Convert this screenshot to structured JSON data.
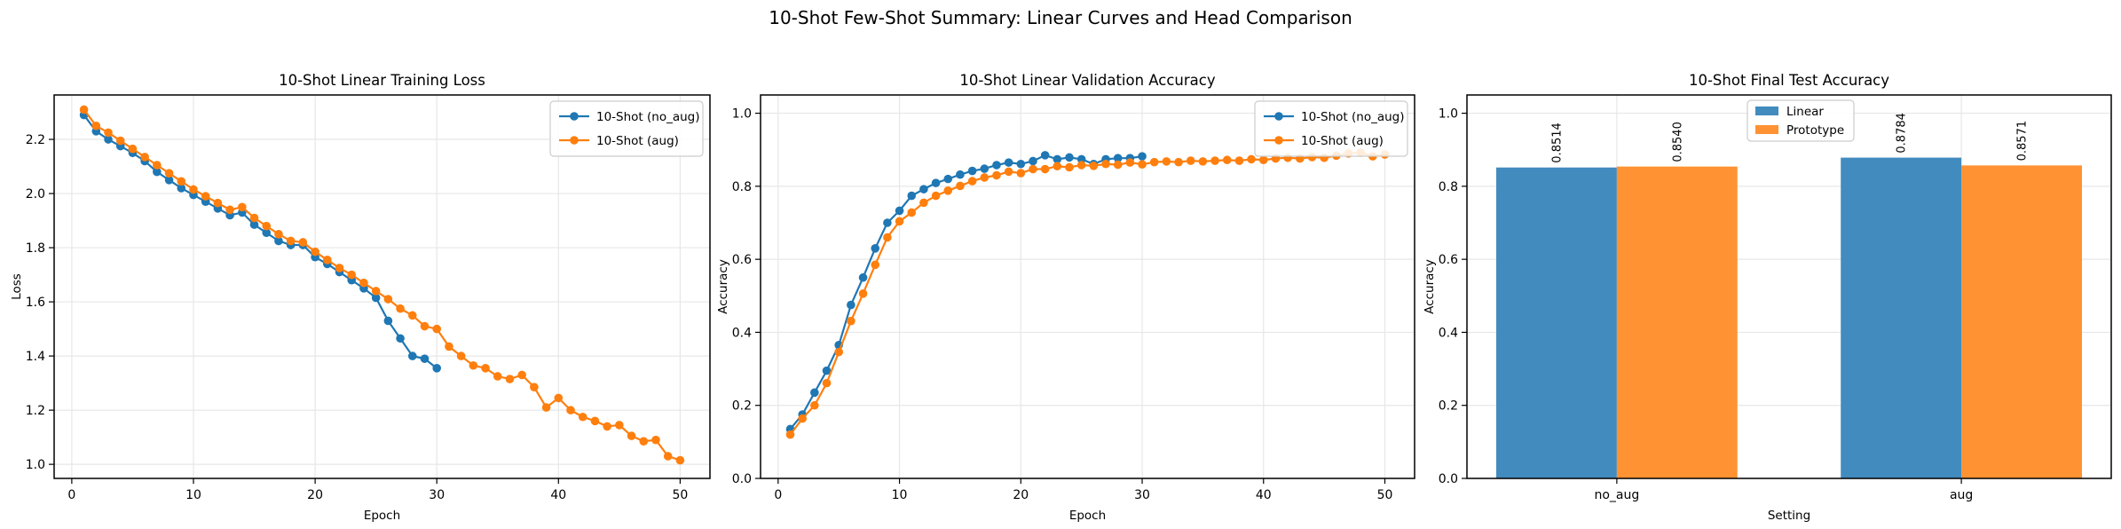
{
  "suptitle": "10-Shot Few-Shot Summary: Linear Curves and Head Comparison",
  "figure": {
    "background": "#ffffff",
    "grid_color": "#e7e7e7",
    "text_color": "#000000"
  },
  "chart_data": [
    {
      "type": "line",
      "title": "10-Shot Linear Training Loss",
      "xlabel": "Epoch",
      "ylabel": "Loss",
      "xlim": [
        -1.45,
        52.45
      ],
      "ylim": [
        0.948,
        2.364
      ],
      "xticks": [
        0,
        10,
        20,
        30,
        40,
        50
      ],
      "yticks": [
        1.0,
        1.2,
        1.4,
        1.6,
        1.8,
        2.0,
        2.2
      ],
      "grid": true,
      "legend_loc": "upper right",
      "x_start": 1,
      "series": [
        {
          "name": "10-Shot (no_aug)",
          "color": "#1f77b4",
          "marker": "circle",
          "values": [
            2.29,
            2.23,
            2.2,
            2.175,
            2.15,
            2.12,
            2.08,
            2.05,
            2.02,
            1.995,
            1.97,
            1.945,
            1.92,
            1.93,
            1.885,
            1.855,
            1.825,
            1.81,
            1.81,
            1.765,
            1.74,
            1.71,
            1.68,
            1.65,
            1.615,
            1.53,
            1.465,
            1.4,
            1.39,
            1.355
          ]
        },
        {
          "name": "10-Shot (aug)",
          "color": "#ff7f0e",
          "marker": "circle",
          "values": [
            2.31,
            2.25,
            2.225,
            2.195,
            2.165,
            2.135,
            2.105,
            2.075,
            2.045,
            2.015,
            1.99,
            1.965,
            1.94,
            1.95,
            1.91,
            1.88,
            1.85,
            1.825,
            1.82,
            1.785,
            1.755,
            1.725,
            1.7,
            1.67,
            1.64,
            1.61,
            1.575,
            1.55,
            1.51,
            1.5,
            1.435,
            1.4,
            1.365,
            1.355,
            1.325,
            1.315,
            1.33,
            1.285,
            1.21,
            1.245,
            1.2,
            1.175,
            1.16,
            1.14,
            1.145,
            1.105,
            1.085,
            1.09,
            1.03,
            1.015
          ]
        }
      ]
    },
    {
      "type": "line",
      "title": "10-Shot Linear Validation Accuracy",
      "xlabel": "Epoch",
      "ylabel": "Accuracy",
      "xlim": [
        -1.45,
        52.45
      ],
      "ylim": [
        0.0,
        1.05
      ],
      "xticks": [
        0,
        10,
        20,
        30,
        40,
        50
      ],
      "yticks": [
        0.0,
        0.2,
        0.4,
        0.6,
        0.8,
        1.0
      ],
      "grid": true,
      "legend_loc": "upper right",
      "x_start": 1,
      "series": [
        {
          "name": "10-Shot (no_aug)",
          "color": "#1f77b4",
          "marker": "circle",
          "values": [
            0.135,
            0.175,
            0.235,
            0.295,
            0.365,
            0.475,
            0.55,
            0.63,
            0.7,
            0.733,
            0.774,
            0.792,
            0.809,
            0.82,
            0.832,
            0.842,
            0.848,
            0.858,
            0.865,
            0.861,
            0.869,
            0.885,
            0.874,
            0.879,
            0.874,
            0.861,
            0.874,
            0.877,
            0.877,
            0.882
          ]
        },
        {
          "name": "10-Shot (aug)",
          "color": "#ff7f0e",
          "marker": "circle",
          "values": [
            0.12,
            0.164,
            0.2,
            0.261,
            0.346,
            0.431,
            0.506,
            0.585,
            0.66,
            0.704,
            0.728,
            0.755,
            0.774,
            0.788,
            0.801,
            0.814,
            0.824,
            0.83,
            0.84,
            0.836,
            0.847,
            0.847,
            0.855,
            0.852,
            0.858,
            0.856,
            0.861,
            0.859,
            0.865,
            0.86,
            0.866,
            0.868,
            0.866,
            0.87,
            0.868,
            0.87,
            0.872,
            0.87,
            0.874,
            0.872,
            0.876,
            0.878,
            0.876,
            0.88,
            0.878,
            0.884,
            0.89,
            0.892,
            0.882,
            0.887
          ]
        }
      ]
    },
    {
      "type": "bar",
      "title": "10-Shot Final Test Accuracy",
      "xlabel": "Setting",
      "ylabel": "Accuracy",
      "categories": [
        "no_aug",
        "aug"
      ],
      "xlim": [
        -0.435,
        1.435
      ],
      "ylim": [
        0.0,
        1.05
      ],
      "yticks": [
        0.0,
        0.2,
        0.4,
        0.6,
        0.8,
        1.0
      ],
      "grid": true,
      "legend_loc": "upper center",
      "bar_width": 0.35,
      "bar_label_decimals": 4,
      "series": [
        {
          "name": "Linear",
          "color": "#418bbf",
          "values": [
            0.8514,
            0.8784
          ]
        },
        {
          "name": "Prototype",
          "color": "#ff9232",
          "values": [
            0.854,
            0.8571
          ]
        }
      ]
    }
  ]
}
